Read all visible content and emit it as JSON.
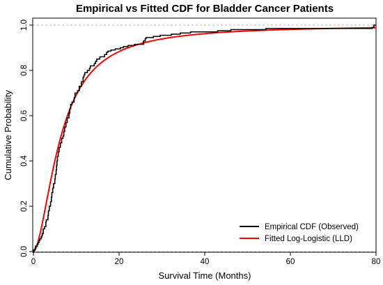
{
  "chart_data": {
    "type": "line",
    "title": "Empirical vs Fitted CDF for Bladder Cancer Patients",
    "xlabel": "Survival Time (Months)",
    "ylabel": "Cumulative Probability",
    "xlim": [
      0,
      80
    ],
    "ylim": [
      0,
      1
    ],
    "x_ticks": [
      0,
      20,
      40,
      60,
      80
    ],
    "y_ticks": [
      0.0,
      0.2,
      0.4,
      0.6,
      0.8,
      1.0
    ],
    "y_tick_labels": [
      "0.0",
      "0.2",
      "0.4",
      "0.6",
      "0.8",
      "1.0"
    ],
    "reference_lines_y": [
      0,
      1
    ],
    "legend_position": "bottom-right",
    "series": [
      {
        "name": "Empirical CDF (Observed)",
        "color": "#000000",
        "style": "step",
        "points": [
          [
            0.0,
            0.0
          ],
          [
            0.08,
            0.008
          ],
          [
            0.4,
            0.016
          ],
          [
            0.5,
            0.024
          ],
          [
            0.9,
            0.032
          ],
          [
            1.1,
            0.04
          ],
          [
            1.3,
            0.048
          ],
          [
            1.5,
            0.056
          ],
          [
            1.8,
            0.064
          ],
          [
            2.0,
            0.072
          ],
          [
            2.1,
            0.08
          ],
          [
            2.3,
            0.1
          ],
          [
            2.6,
            0.11
          ],
          [
            2.9,
            0.13
          ],
          [
            3.0,
            0.14
          ],
          [
            3.4,
            0.16
          ],
          [
            3.5,
            0.18
          ],
          [
            3.7,
            0.2
          ],
          [
            4.0,
            0.22
          ],
          [
            4.2,
            0.24
          ],
          [
            4.3,
            0.26
          ],
          [
            4.5,
            0.28
          ],
          [
            4.7,
            0.3
          ],
          [
            5.0,
            0.32
          ],
          [
            5.1,
            0.34
          ],
          [
            5.3,
            0.36
          ],
          [
            5.4,
            0.38
          ],
          [
            5.5,
            0.4
          ],
          [
            5.6,
            0.42
          ],
          [
            5.8,
            0.44
          ],
          [
            6.0,
            0.46
          ],
          [
            6.3,
            0.48
          ],
          [
            6.6,
            0.5
          ],
          [
            6.9,
            0.51
          ],
          [
            7.1,
            0.53
          ],
          [
            7.3,
            0.55
          ],
          [
            7.6,
            0.57
          ],
          [
            7.9,
            0.59
          ],
          [
            8.3,
            0.61
          ],
          [
            8.5,
            0.63
          ],
          [
            8.7,
            0.65
          ],
          [
            9.0,
            0.66
          ],
          [
            9.5,
            0.68
          ],
          [
            9.7,
            0.7
          ],
          [
            10.3,
            0.71
          ],
          [
            10.7,
            0.73
          ],
          [
            11.2,
            0.75
          ],
          [
            11.6,
            0.77
          ],
          [
            11.8,
            0.78
          ],
          [
            12.0,
            0.79
          ],
          [
            12.6,
            0.8
          ],
          [
            13.1,
            0.81
          ],
          [
            13.3,
            0.82
          ],
          [
            14.2,
            0.83
          ],
          [
            14.5,
            0.84
          ],
          [
            14.8,
            0.85
          ],
          [
            15.5,
            0.86
          ],
          [
            16.6,
            0.87
          ],
          [
            17.1,
            0.88
          ],
          [
            17.4,
            0.885
          ],
          [
            18.1,
            0.89
          ],
          [
            19.1,
            0.895
          ],
          [
            20.3,
            0.9
          ],
          [
            21.0,
            0.905
          ],
          [
            22.1,
            0.91
          ],
          [
            23.6,
            0.915
          ],
          [
            25.7,
            0.93
          ],
          [
            26.1,
            0.94
          ],
          [
            26.3,
            0.945
          ],
          [
            28.0,
            0.95
          ],
          [
            29.6,
            0.955
          ],
          [
            32.2,
            0.96
          ],
          [
            34.3,
            0.965
          ],
          [
            36.7,
            0.97
          ],
          [
            43.0,
            0.975
          ],
          [
            46.1,
            0.98
          ],
          [
            54.3,
            0.985
          ],
          [
            79.1,
            0.99
          ],
          [
            79.5,
            1.0
          ],
          [
            80.0,
            1.0
          ]
        ]
      },
      {
        "name": "Fitted Log-Logistic (LLD)",
        "color": "#ff0000",
        "style": "smooth",
        "median": 6.3,
        "shape": 1.75
      }
    ]
  }
}
